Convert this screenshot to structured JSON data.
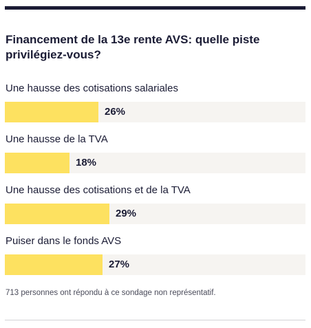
{
  "title": "Financement de la 13e rente AVS: quelle piste privilégiez-vous?",
  "footnote": "713 personnes ont répondu à ce sondage non représentatif.",
  "colors": {
    "bar": "#fde160",
    "track": "#f6f4f1",
    "rule": "#1b1c35"
  },
  "chart_data": {
    "type": "bar",
    "orientation": "horizontal",
    "title": "Financement de la 13e rente AVS: quelle piste privilégiez-vous?",
    "categories": [
      "Une hausse des cotisations salariales",
      "Une hausse de la TVA",
      "Une hausse des cotisations et de la TVA",
      "Puiser dans le fonds AVS"
    ],
    "values": [
      26,
      18,
      29,
      27
    ],
    "value_labels": [
      "26%",
      "18%",
      "29%",
      "27%"
    ],
    "unit": "%",
    "xlim": [
      0,
      100
    ],
    "grid": false
  }
}
